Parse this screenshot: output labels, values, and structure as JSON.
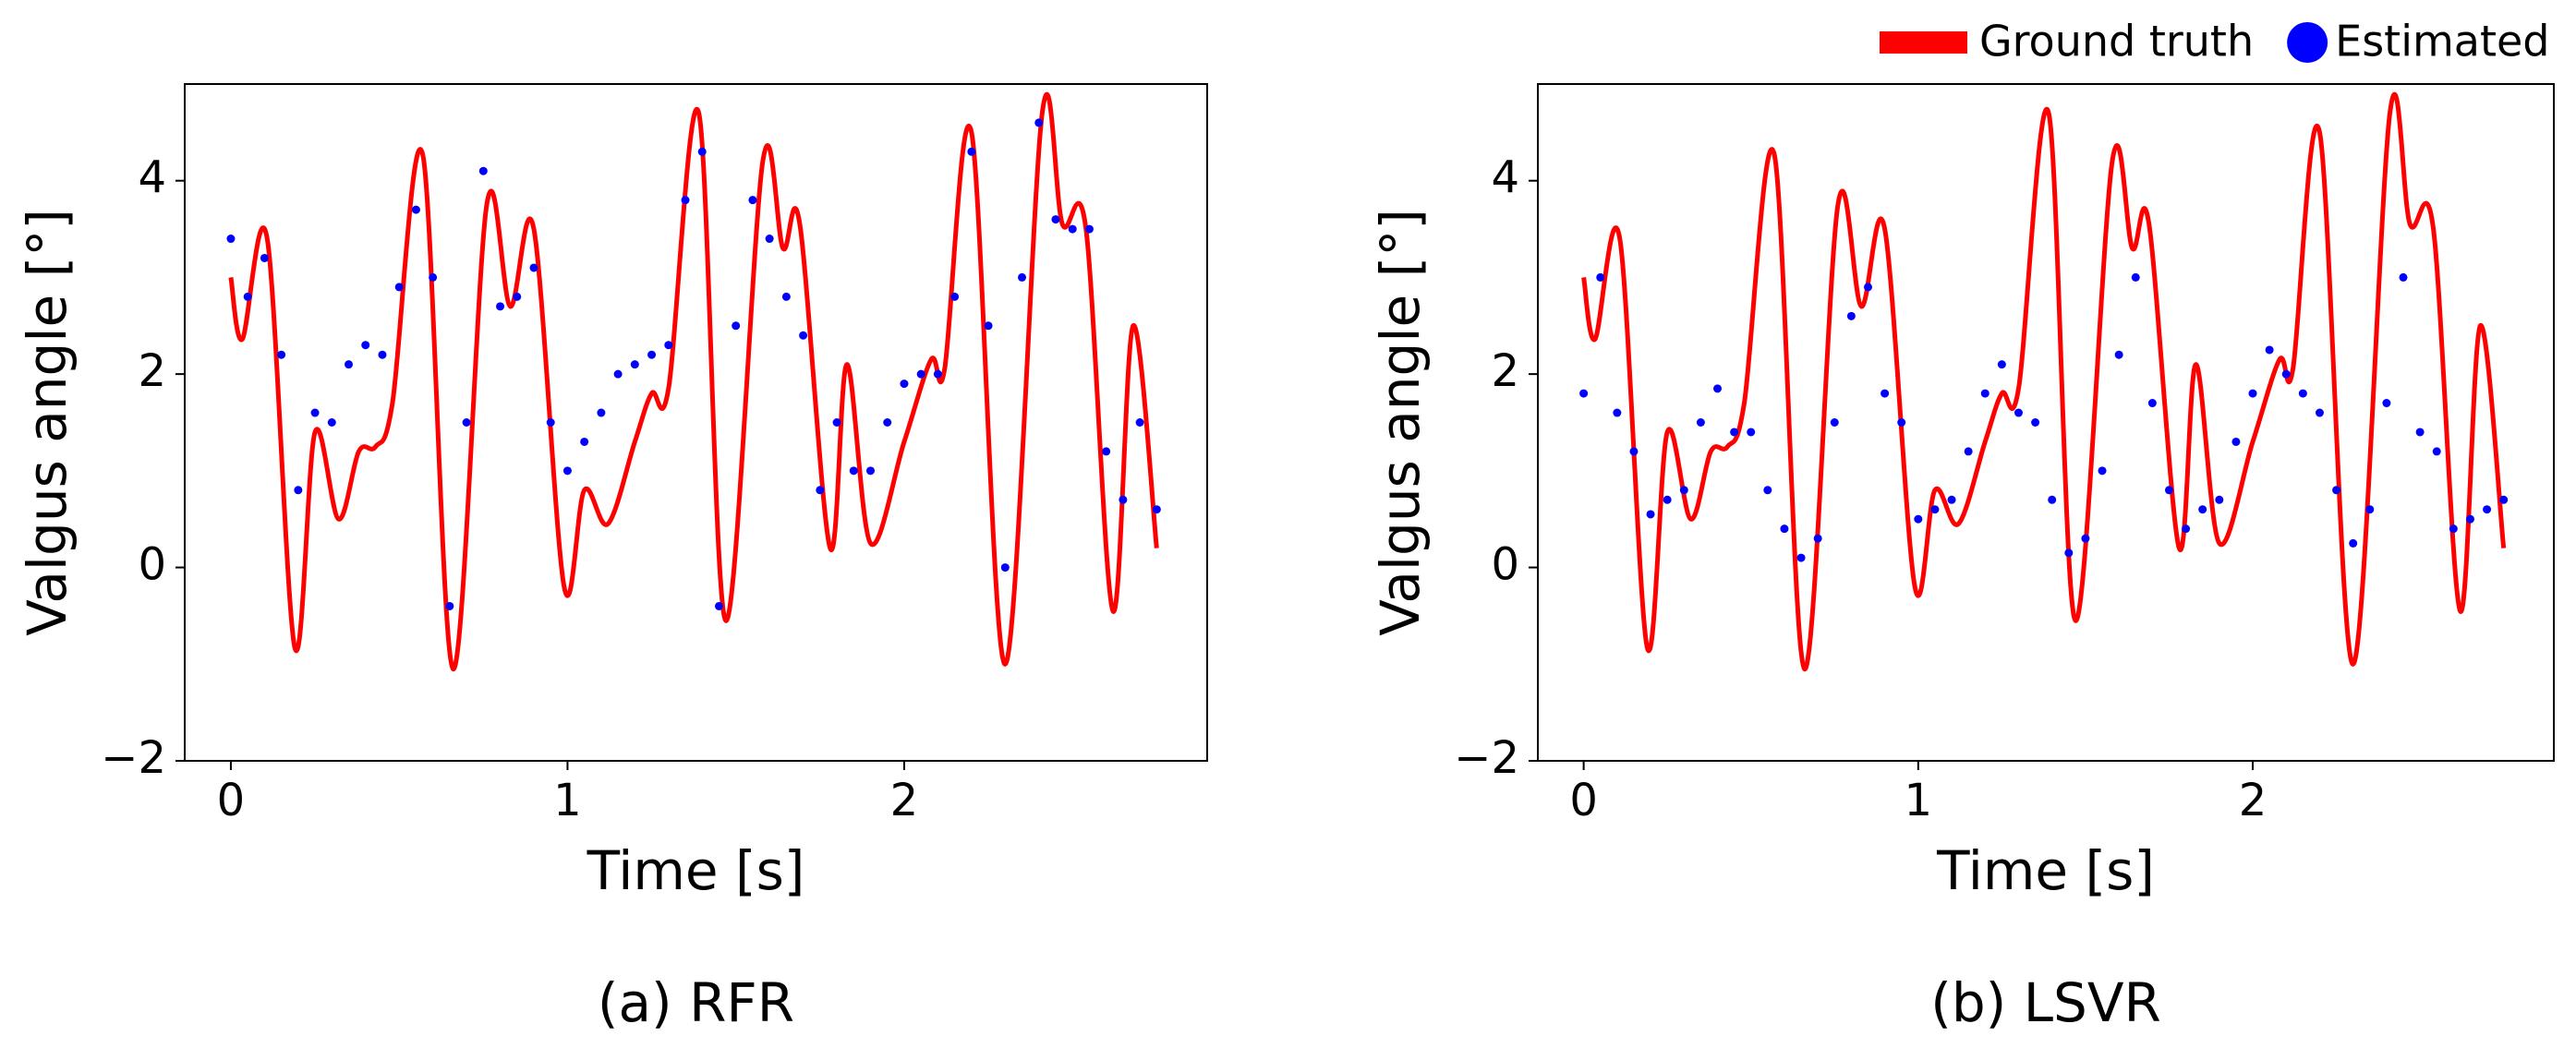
{
  "chart_data": [
    {
      "type": "line_scatter",
      "caption": "(a) RFR",
      "xlabel": "Time [s]",
      "ylabel": "Valgus angle [°]",
      "xlim": [
        -0.137,
        2.9
      ],
      "ylim": [
        -2,
        5
      ],
      "xticks": [
        0,
        1,
        2
      ],
      "yticks": [
        {
          "value": -2,
          "label": "−2"
        },
        0,
        2,
        4
      ],
      "series": [
        {
          "name": "Ground truth",
          "kind": "line",
          "color": "#ff0000",
          "x": [
            0,
            0.034,
            0.108,
            0.19,
            0.25,
            0.32,
            0.38,
            0.43,
            0.48,
            0.57,
            0.66,
            0.76,
            0.83,
            0.9,
            0.99,
            1.05,
            1.12,
            1.2,
            1.25,
            1.3,
            1.39,
            1.47,
            1.58,
            1.64,
            1.69,
            1.78,
            1.83,
            1.9,
            2.0,
            2.08,
            2.12,
            2.2,
            2.3,
            2.41,
            2.47,
            2.54,
            2.62,
            2.68,
            2.75
          ],
          "values": [
            3.0,
            2.36,
            3.4,
            -0.83,
            1.4,
            0.5,
            1.2,
            1.25,
            1.7,
            4.27,
            -1.05,
            3.75,
            2.7,
            3.5,
            -0.2,
            0.8,
            0.45,
            1.3,
            1.8,
            1.85,
            4.7,
            -0.55,
            4.2,
            3.3,
            3.55,
            0.2,
            2.1,
            0.25,
            1.3,
            2.15,
            2.05,
            4.5,
            -1.0,
            4.7,
            3.55,
            3.5,
            -0.45,
            2.5,
            0.2
          ]
        },
        {
          "name": "Estimated",
          "kind": "scatter",
          "color": "#0000ff",
          "x": [
            0,
            0.05,
            0.1,
            0.15,
            0.2,
            0.25,
            0.3,
            0.35,
            0.4,
            0.45,
            0.5,
            0.55,
            0.6,
            0.65,
            0.7,
            0.75,
            0.8,
            0.85,
            0.9,
            0.95,
            1.0,
            1.05,
            1.1,
            1.15,
            1.2,
            1.25,
            1.3,
            1.35,
            1.4,
            1.45,
            1.5,
            1.55,
            1.6,
            1.65,
            1.7,
            1.75,
            1.8,
            1.85,
            1.9,
            1.95,
            2.0,
            2.05,
            2.1,
            2.15,
            2.2,
            2.25,
            2.3,
            2.35,
            2.4,
            2.45,
            2.5,
            2.55,
            2.6,
            2.65,
            2.7,
            2.75
          ],
          "values": [
            3.4,
            2.8,
            3.2,
            2.2,
            0.8,
            1.6,
            1.5,
            2.1,
            2.3,
            2.2,
            2.9,
            3.7,
            3.0,
            -0.4,
            1.5,
            4.1,
            2.7,
            2.8,
            3.1,
            1.5,
            1.0,
            1.3,
            1.6,
            2.0,
            2.1,
            2.2,
            2.3,
            3.8,
            4.3,
            -0.4,
            2.5,
            3.8,
            3.4,
            2.8,
            2.4,
            0.8,
            1.5,
            1.0,
            1.0,
            1.5,
            1.9,
            2.0,
            2.0,
            2.8,
            4.3,
            2.5,
            0.0,
            3.0,
            4.6,
            3.6,
            3.5,
            3.5,
            1.2,
            0.7,
            1.5,
            0.6
          ]
        }
      ]
    },
    {
      "type": "line_scatter",
      "caption": "(b) LSVR",
      "xlabel": "Time [s]",
      "ylabel": "Valgus angle [°]",
      "xlim": [
        -0.137,
        2.9
      ],
      "ylim": [
        -2,
        5
      ],
      "xticks": [
        0,
        1,
        2
      ],
      "yticks": [
        {
          "value": -2,
          "label": "−2"
        },
        0,
        2,
        4
      ],
      "legend": "upper right",
      "series": [
        {
          "name": "Ground truth",
          "kind": "line",
          "color": "#ff0000",
          "x": [
            0,
            0.034,
            0.108,
            0.19,
            0.25,
            0.32,
            0.38,
            0.43,
            0.48,
            0.57,
            0.66,
            0.76,
            0.83,
            0.9,
            0.99,
            1.05,
            1.12,
            1.2,
            1.25,
            1.3,
            1.39,
            1.47,
            1.58,
            1.64,
            1.69,
            1.78,
            1.83,
            1.9,
            2.0,
            2.08,
            2.12,
            2.2,
            2.3,
            2.41,
            2.47,
            2.54,
            2.62,
            2.68,
            2.75
          ],
          "values": [
            3.0,
            2.36,
            3.4,
            -0.83,
            1.4,
            0.5,
            1.2,
            1.25,
            1.7,
            4.27,
            -1.05,
            3.75,
            2.7,
            3.5,
            -0.2,
            0.8,
            0.45,
            1.3,
            1.8,
            1.85,
            4.7,
            -0.55,
            4.2,
            3.3,
            3.55,
            0.2,
            2.1,
            0.25,
            1.3,
            2.15,
            2.05,
            4.5,
            -1.0,
            4.7,
            3.55,
            3.5,
            -0.45,
            2.5,
            0.2
          ]
        },
        {
          "name": "Estimated",
          "kind": "scatter",
          "color": "#0000ff",
          "x": [
            0,
            0.05,
            0.1,
            0.15,
            0.2,
            0.25,
            0.3,
            0.35,
            0.4,
            0.45,
            0.5,
            0.55,
            0.6,
            0.65,
            0.7,
            0.75,
            0.8,
            0.85,
            0.9,
            0.95,
            1.0,
            1.05,
            1.1,
            1.15,
            1.2,
            1.25,
            1.3,
            1.35,
            1.4,
            1.45,
            1.5,
            1.55,
            1.6,
            1.65,
            1.7,
            1.75,
            1.8,
            1.85,
            1.9,
            1.95,
            2.0,
            2.05,
            2.1,
            2.15,
            2.2,
            2.25,
            2.3,
            2.35,
            2.4,
            2.45,
            2.5,
            2.55,
            2.6,
            2.65,
            2.7,
            2.75
          ],
          "values": [
            1.8,
            3.0,
            1.6,
            1.2,
            0.55,
            0.7,
            0.8,
            1.5,
            1.85,
            1.4,
            1.4,
            0.8,
            0.4,
            0.1,
            0.3,
            1.5,
            2.6,
            2.9,
            1.8,
            1.5,
            0.5,
            0.6,
            0.7,
            1.2,
            1.8,
            2.1,
            1.6,
            1.5,
            0.7,
            0.15,
            0.3,
            1.0,
            2.2,
            3.0,
            1.7,
            0.8,
            0.4,
            0.6,
            0.7,
            1.3,
            1.8,
            2.25,
            2.0,
            1.8,
            1.6,
            0.8,
            0.25,
            0.6,
            1.7,
            3.0,
            1.4,
            1.2,
            0.4,
            0.5,
            0.6,
            0.7
          ]
        }
      ]
    }
  ]
}
